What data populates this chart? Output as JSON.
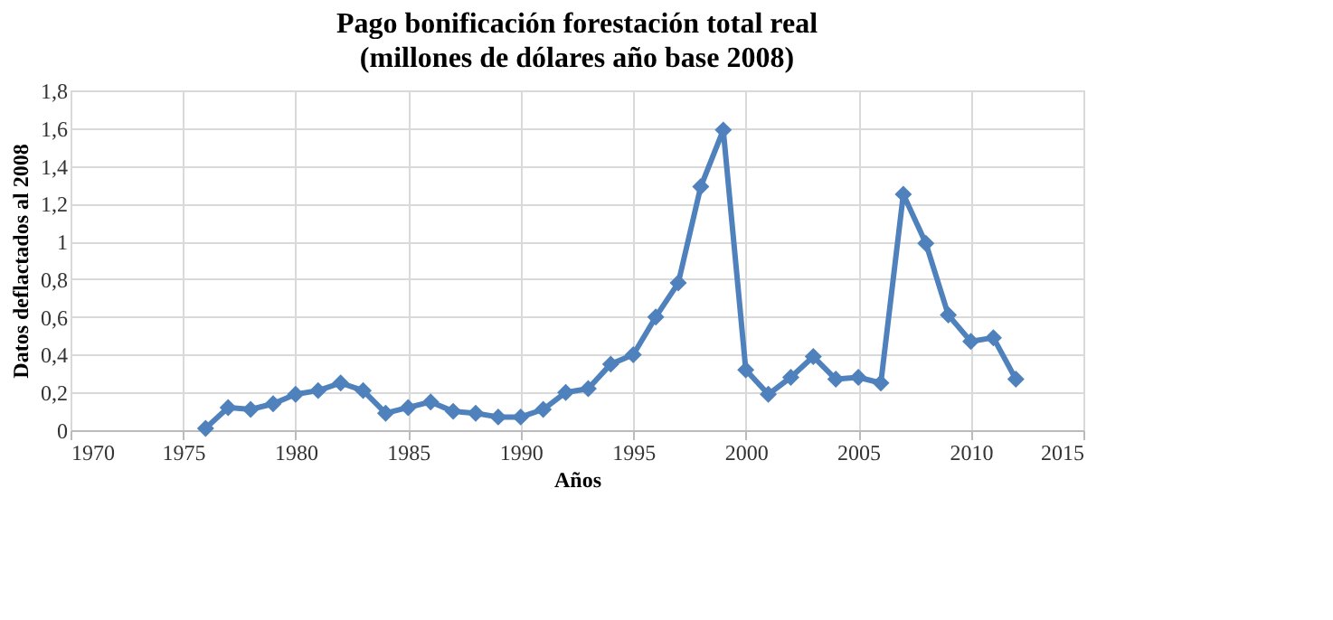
{
  "chart_data": {
    "type": "line",
    "title": "Pago bonificación forestación total real",
    "subtitle": "(millones de dólares año base 2008)",
    "xlabel": "Años",
    "ylabel": "Datos deflactados al 2008",
    "x": [
      1976,
      1977,
      1978,
      1979,
      1980,
      1981,
      1982,
      1983,
      1984,
      1985,
      1986,
      1987,
      1988,
      1989,
      1990,
      1991,
      1992,
      1993,
      1994,
      1995,
      1996,
      1997,
      1998,
      1999,
      2000,
      2001,
      2002,
      2003,
      2004,
      2005,
      2006,
      2007,
      2008,
      2009,
      2010,
      2011,
      2012
    ],
    "series": [
      {
        "color": "#4f81bd",
        "values": [
          0.01,
          0.12,
          0.11,
          0.14,
          0.19,
          0.21,
          0.25,
          0.21,
          0.09,
          0.12,
          0.15,
          0.1,
          0.09,
          0.07,
          0.07,
          0.11,
          0.2,
          0.22,
          0.35,
          0.4,
          0.6,
          0.78,
          1.29,
          1.59,
          0.32,
          0.19,
          0.28,
          0.39,
          0.27,
          0.28,
          0.25,
          1.25,
          0.99,
          0.61,
          0.47,
          0.49,
          0.27
        ]
      }
    ],
    "xlim": [
      1970,
      2015
    ],
    "xticks": [
      1970,
      1975,
      1980,
      1985,
      1990,
      1995,
      2000,
      2005,
      2010,
      2015
    ],
    "ylim": [
      0,
      1.8
    ],
    "yticks": [
      0,
      {
        "value": 0.2,
        "label": "0,2"
      },
      {
        "value": 0.4,
        "label": "0,4"
      },
      {
        "value": 0.6,
        "label": "0,6"
      },
      {
        "value": 0.8,
        "label": "0,8"
      },
      1,
      {
        "value": 1.2,
        "label": "1,2"
      },
      {
        "value": 1.4,
        "label": "1,4"
      },
      {
        "value": 1.6,
        "label": "1,6"
      },
      {
        "value": 1.8,
        "label": "1,8"
      }
    ],
    "grid": true,
    "marker": "diamond",
    "line_style": "solid"
  }
}
